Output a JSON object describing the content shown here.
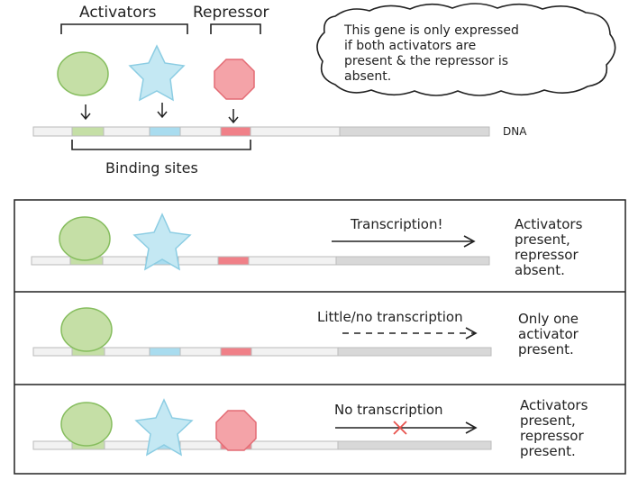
{
  "top": {
    "activators_label": "Activators",
    "repressor_label": "Repressor",
    "dna_label": "DNA",
    "binding_sites_label": "Binding sites",
    "note_lines": [
      "This gene is only expressed",
      "if both activators are",
      "present & the repressor is",
      "absent."
    ]
  },
  "panels": [
    {
      "arrow_label": "Transcription!",
      "side_lines": [
        "Activators",
        "present,",
        "repressor",
        "absent."
      ],
      "arrow_style": "solid"
    },
    {
      "arrow_label": "Little/no transcription",
      "side_lines": [
        "Only one",
        "activator",
        "present."
      ],
      "arrow_style": "dashed"
    },
    {
      "arrow_label": "No transcription",
      "side_lines": [
        "Activators",
        "present,",
        "repressor",
        "present."
      ],
      "arrow_style": "blocked"
    }
  ],
  "colors": {
    "activator_circle": "#c5dfa6",
    "activator_circle_stroke": "#86bd5e",
    "activator_star": "#c4e8f3",
    "activator_star_stroke": "#8ccde3",
    "repressor": "#f4a3a8",
    "repressor_stroke": "#e36b74",
    "dna_fill": "#f2f2f2",
    "dna_gray": "#d8d8d8",
    "blocked_x": "#e8534e"
  }
}
